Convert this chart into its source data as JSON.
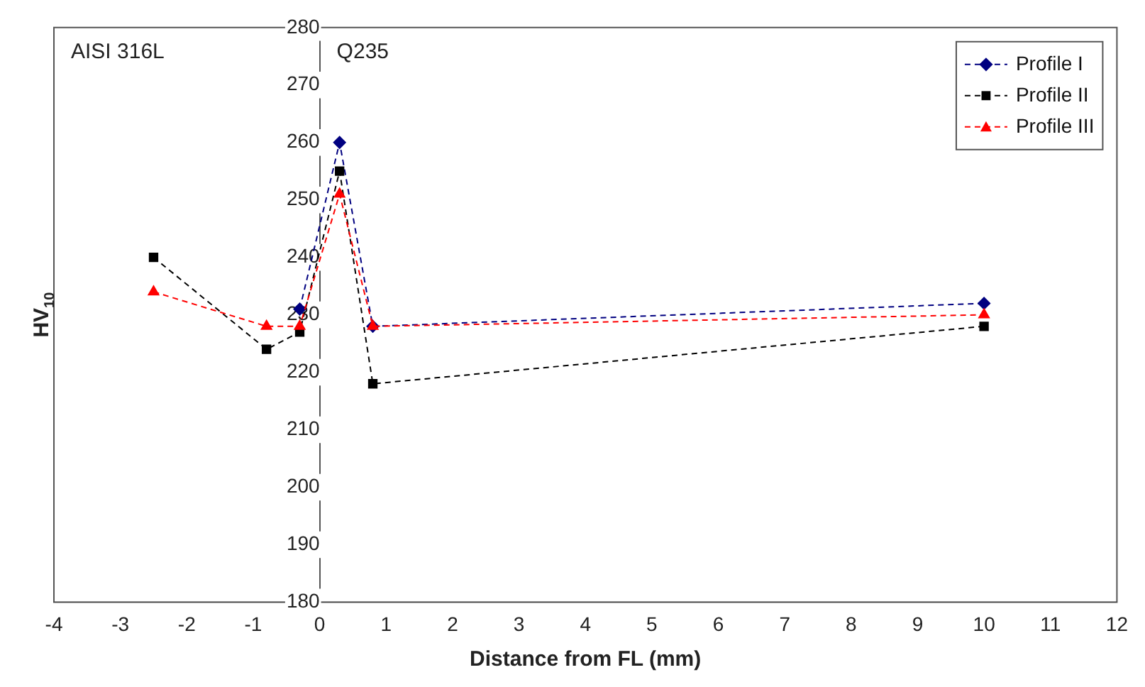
{
  "chart_data": {
    "type": "line",
    "xlabel": "Distance from FL (mm)",
    "ylabel": "HV$_{10}$",
    "xlim": [
      -4,
      12
    ],
    "xticks": [
      -4,
      -3,
      -2,
      -1,
      0,
      1,
      2,
      3,
      4,
      5,
      6,
      7,
      8,
      9,
      10,
      11,
      12
    ],
    "ylim": [
      180,
      280
    ],
    "yticks": [
      180,
      190,
      200,
      210,
      220,
      230,
      240,
      250,
      260,
      270,
      280
    ],
    "grid": false,
    "legend": "top right",
    "line_style": "dashed",
    "annotations": [
      "AISI 316L",
      "Q235"
    ],
    "series": [
      {
        "name": "Profile I",
        "color": "#000080",
        "marker": "diamond",
        "x": [
          -0.3,
          0.3,
          0.8,
          10
        ],
        "values": [
          231,
          260,
          228,
          232
        ]
      },
      {
        "name": "Profile II",
        "color": "#000000",
        "marker": "square",
        "x": [
          -2.5,
          -0.8,
          -0.3,
          0.3,
          0.8,
          10
        ],
        "values": [
          240,
          224,
          227,
          255,
          218,
          228
        ]
      },
      {
        "name": "Profile III",
        "color": "#ff0000",
        "marker": "triangle",
        "x": [
          -2.5,
          -0.8,
          -0.3,
          0.3,
          0.8,
          10
        ],
        "values": [
          234,
          228,
          228,
          251,
          228,
          230
        ]
      }
    ]
  }
}
